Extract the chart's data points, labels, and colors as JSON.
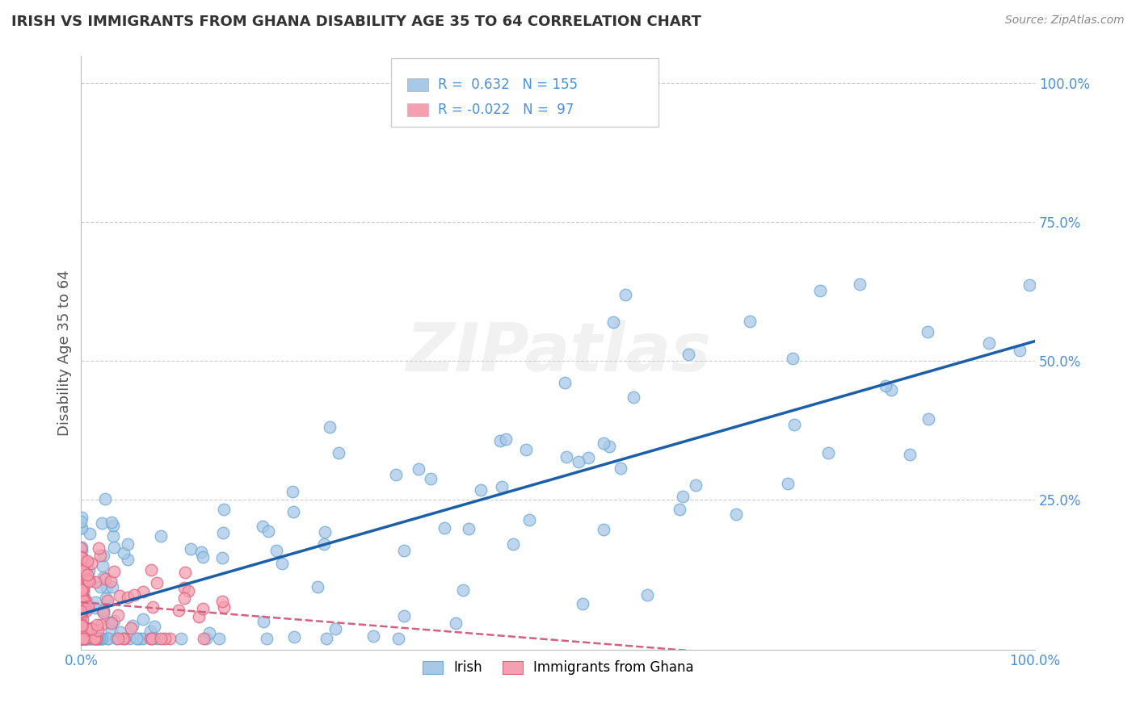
{
  "title": "IRISH VS IMMIGRANTS FROM GHANA DISABILITY AGE 35 TO 64 CORRELATION CHART",
  "source_text": "Source: ZipAtlas.com",
  "ylabel": "Disability Age 35 to 64",
  "R_irish": 0.632,
  "N_irish": 155,
  "R_ghana": -0.022,
  "N_ghana": 97,
  "irish_color": "#a8c8e8",
  "ghana_color": "#f4a0b0",
  "irish_line_color": "#1a5fa8",
  "ghana_line_color": "#d46080",
  "watermark": "ZIPatlas",
  "xmin": 0.0,
  "xmax": 1.0,
  "ymin": -0.02,
  "ymax": 1.05,
  "background_color": "#ffffff",
  "grid_color": "#cccccc",
  "title_color": "#333333",
  "axis_label_color": "#555555",
  "tick_color": "#4a90d9",
  "legend_label_irish": "Irish",
  "legend_label_ghana": "Immigrants from Ghana"
}
